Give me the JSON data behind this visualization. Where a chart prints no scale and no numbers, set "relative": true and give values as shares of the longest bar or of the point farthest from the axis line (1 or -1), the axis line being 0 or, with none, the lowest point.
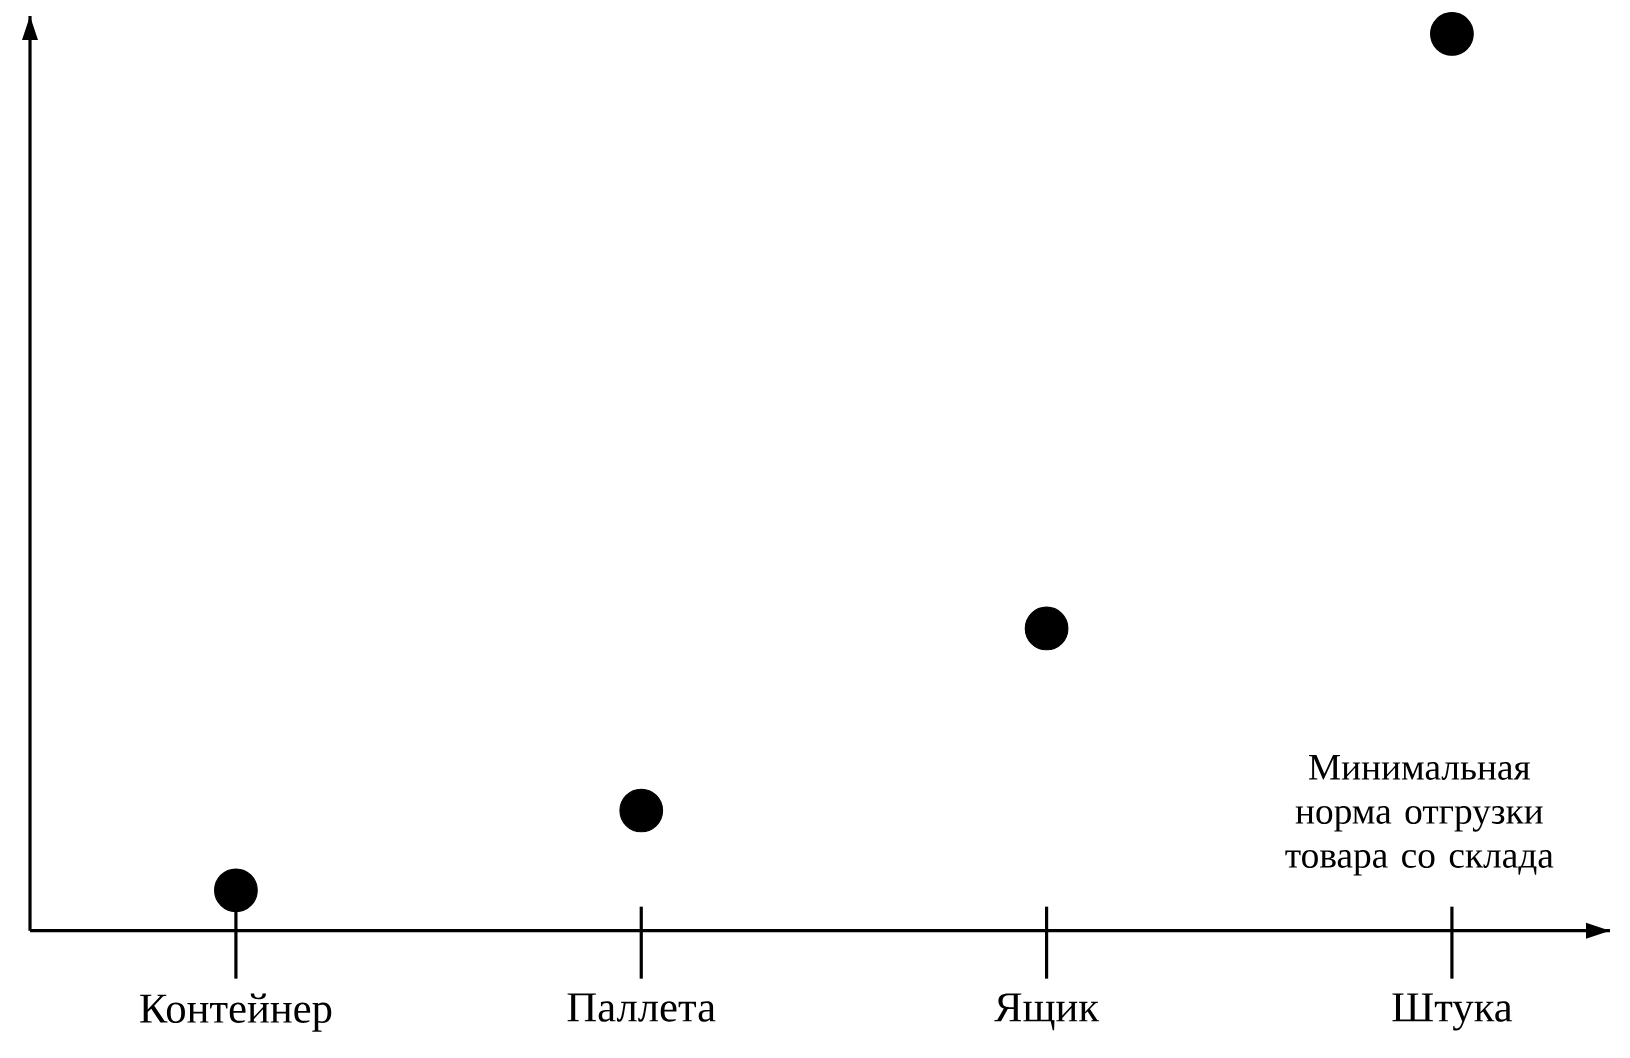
{
  "chart_data": {
    "type": "scatter",
    "relative": true,
    "xlabel": "Минимальная норма отгрузки товара со склада",
    "categories": [
      "Контейнер",
      "Паллета",
      "Ящик",
      "Штука"
    ],
    "values": [
      0.045,
      0.134,
      0.337,
      1
    ],
    "color": "#000000",
    "marker": "circle"
  }
}
